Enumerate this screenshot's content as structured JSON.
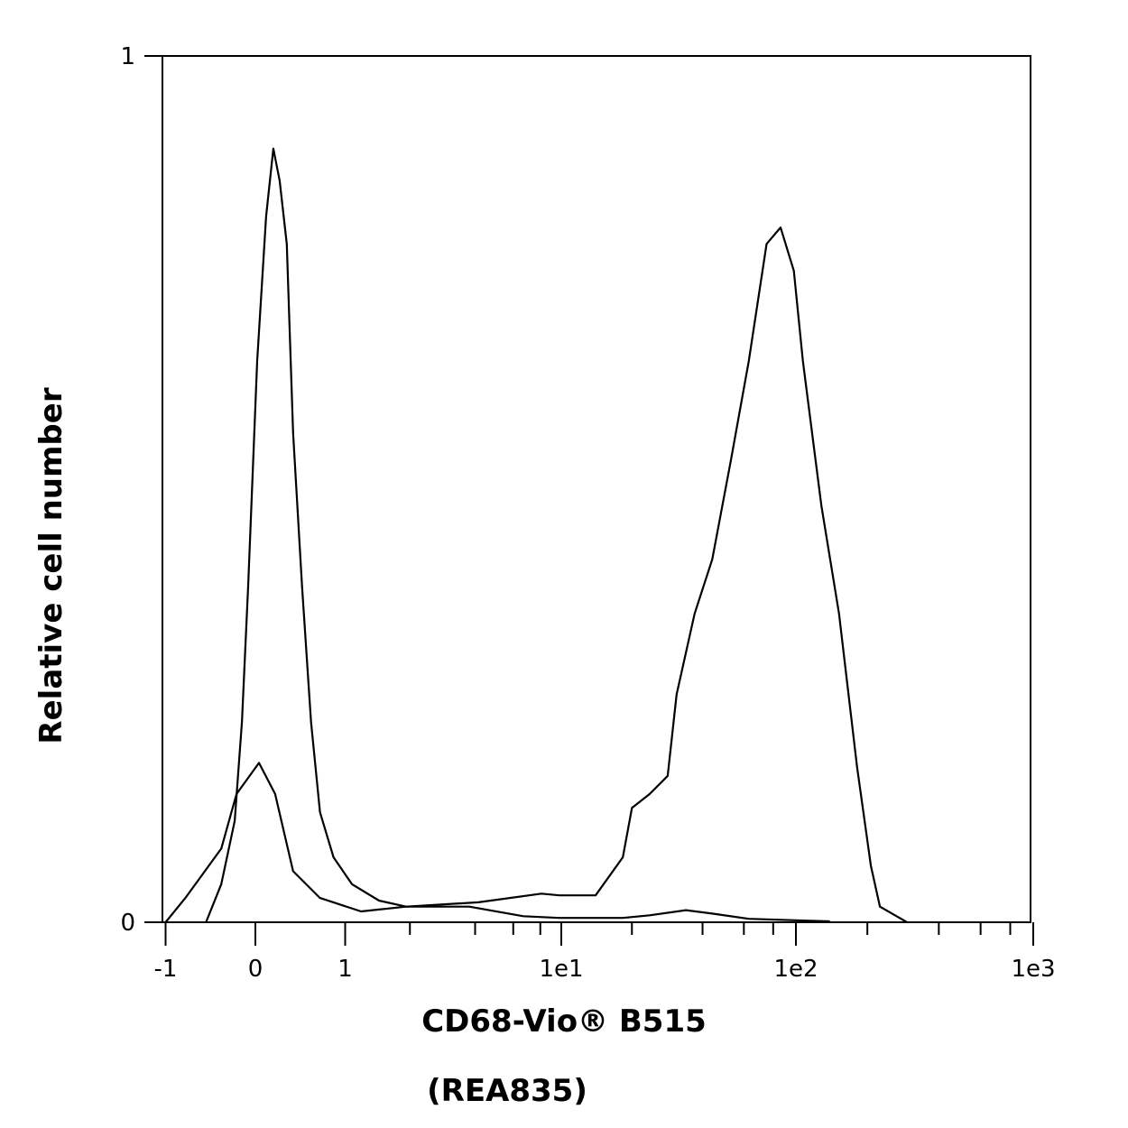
{
  "chart_data": {
    "type": "line",
    "title": "",
    "xlabel": "CD68-Vio® B515",
    "xlabel_sub": "(REA835)",
    "ylabel": "Relative cell number",
    "x_scale": "biexponential (linear -1..1, log above)",
    "xlim": [
      -1,
      1000
    ],
    "ylim": [
      0,
      1
    ],
    "grid": false,
    "x_ticks": [
      {
        "value": -1,
        "label": "-1"
      },
      {
        "value": 0,
        "label": "0"
      },
      {
        "value": 1,
        "label": "1"
      },
      {
        "value": 10,
        "label": "1e1"
      },
      {
        "value": 100,
        "label": "1e2"
      },
      {
        "value": 1000,
        "label": "1e3"
      }
    ],
    "x_minor_ticks": [
      2,
      4,
      6,
      8,
      20,
      40,
      60,
      80,
      200,
      400,
      600,
      800
    ],
    "y_ticks": [
      {
        "value": 0,
        "label": "0"
      },
      {
        "value": 1,
        "label": "1"
      }
    ],
    "colors": {
      "line": "#000000",
      "axis": "#000000"
    },
    "series": [
      {
        "x": [
          -0.55,
          -0.38,
          -0.23,
          -0.15,
          -0.08,
          0.02,
          0.12,
          0.2,
          0.27,
          0.35,
          0.42,
          0.52,
          0.62,
          0.72,
          0.87,
          1.08,
          1.44,
          1.92,
          3.76,
          6.68,
          9.8,
          18.3,
          23.8,
          34,
          44,
          63,
          139
        ],
        "y": [
          0,
          0.044,
          0.117,
          0.231,
          0.388,
          0.648,
          0.815,
          0.893,
          0.856,
          0.783,
          0.565,
          0.388,
          0.231,
          0.127,
          0.075,
          0.044,
          0.025,
          0.018,
          0.018,
          0.007,
          0.005,
          0.005,
          0.008,
          0.014,
          0.01,
          0.004,
          0.001
        ]
      },
      {
        "x": [
          -1,
          -0.78,
          -0.38,
          -0.21,
          0.04,
          0.22,
          0.42,
          0.72,
          1.19,
          1.92,
          4.14,
          8.1,
          9.8,
          14,
          18.3,
          20,
          23.8,
          28.4,
          31,
          37,
          44,
          52.8,
          63,
          75,
          86,
          98,
          107,
          128,
          152,
          181,
          207,
          226,
          294
        ],
        "y": [
          0,
          0.028,
          0.085,
          0.148,
          0.184,
          0.148,
          0.059,
          0.028,
          0.0125,
          0.018,
          0.023,
          0.033,
          0.031,
          0.031,
          0.075,
          0.132,
          0.148,
          0.169,
          0.263,
          0.356,
          0.419,
          0.533,
          0.648,
          0.783,
          0.802,
          0.752,
          0.648,
          0.481,
          0.356,
          0.179,
          0.065,
          0.018,
          0
        ]
      }
    ]
  }
}
